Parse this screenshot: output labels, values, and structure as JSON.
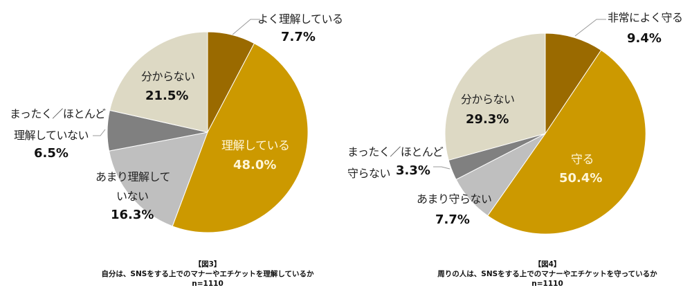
{
  "chart_data": [
    {
      "type": "pie",
      "figure_label": "【図3】",
      "title": "自分は、SNSをする上でのマナーやエチケットを理解しているか",
      "sample_size": "n=1110",
      "start_angle": "12 o'clock, clockwise",
      "slices": [
        {
          "label": "よく理解している",
          "value": 7.7,
          "display": "7.7%",
          "color": "#9A6A00"
        },
        {
          "label": "理解している",
          "value": 48.0,
          "display": "48.0%",
          "color": "#CC9900"
        },
        {
          "label": "あまり理解していない",
          "value": 16.3,
          "display": "16.3%",
          "color": "#BFBFBF"
        },
        {
          "label": "まったく／ほとんど理解していない",
          "value": 6.5,
          "display": "6.5%",
          "color": "#808080"
        },
        {
          "label": "分からない",
          "value": 21.5,
          "display": "21.5%",
          "color": "#DDD9C4"
        }
      ]
    },
    {
      "type": "pie",
      "figure_label": "【図4】",
      "title": "周りの人は、SNSをする上でのマナーやエチケットを守っているか",
      "sample_size": "n=1110",
      "start_angle": "12 o'clock, clockwise",
      "slices": [
        {
          "label": "非常によく守る",
          "value": 9.4,
          "display": "9.4%",
          "color": "#9A6A00"
        },
        {
          "label": "守る",
          "value": 50.4,
          "display": "50.4%",
          "color": "#CC9900"
        },
        {
          "label": "あまり守らない",
          "value": 7.7,
          "display": "7.7%",
          "color": "#BFBFBF"
        },
        {
          "label": "まったく／ほとんど守らない",
          "value": 3.3,
          "display": "3.3%",
          "color": "#808080"
        },
        {
          "label": "分からない",
          "value": 29.3,
          "display": "29.3%",
          "color": "#DDD9C4"
        }
      ]
    }
  ],
  "labels": {
    "left": {
      "s0_line1": "よく理解している",
      "s0_pct": "7.7%",
      "s1_line1": "理解している",
      "s1_pct": "48.0%",
      "s2_line1": "あまり理解して",
      "s2_line2": "いない",
      "s2_pct": "16.3%",
      "s3_line1": "まったく／ほとんど",
      "s3_line2": "理解していない",
      "s3_pct": "6.5%",
      "s4_line1": "分からない",
      "s4_pct": "21.5%"
    },
    "right": {
      "s0_line1": "非常によく守る",
      "s0_pct": "9.4%",
      "s1_line1": "守る",
      "s1_pct": "50.4%",
      "s2_line1": "あまり守らない",
      "s2_pct": "7.7%",
      "s3_line1": "まったく／ほとんど",
      "s3_line2": "守らない",
      "s3_pct": "3.3%",
      "s4_line1": "分からない",
      "s4_pct": "29.3%"
    }
  },
  "captions": {
    "left": {
      "fig": "【図3】",
      "title": "自分は、SNSをする上でのマナーやエチケットを理解しているか",
      "n": "n=1110"
    },
    "right": {
      "fig": "【図4】",
      "title": "周りの人は、SNSをする上でのマナーやエチケットを守っているか",
      "n": "n=1110"
    }
  }
}
